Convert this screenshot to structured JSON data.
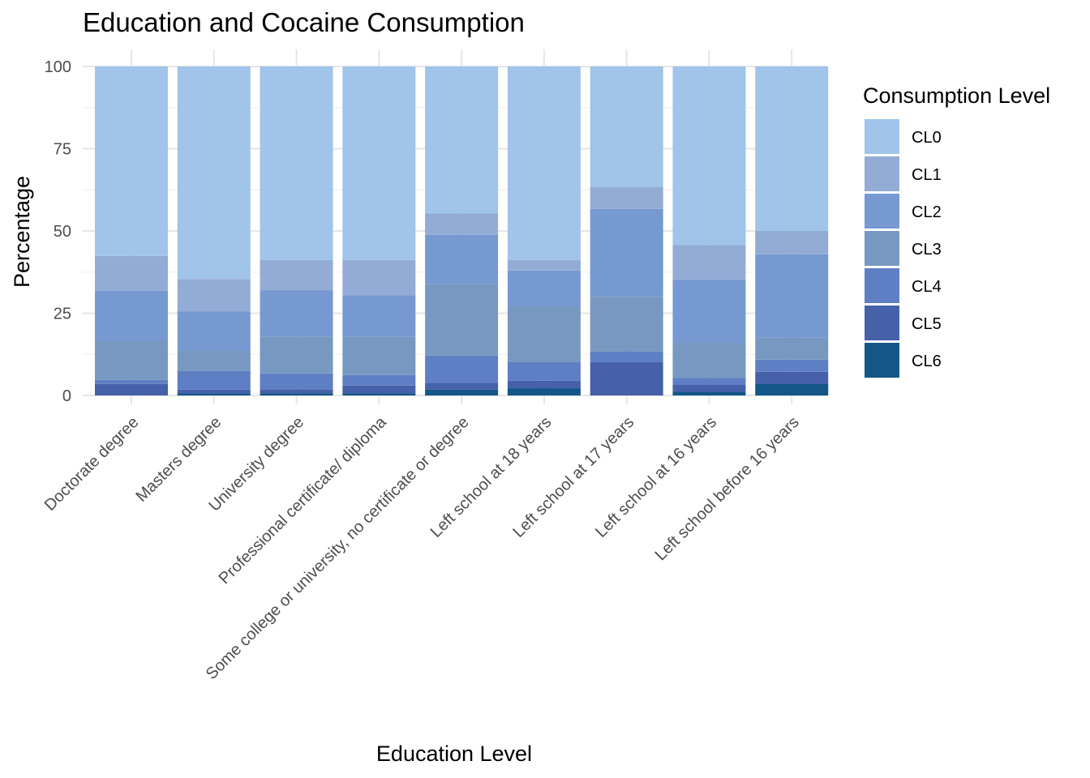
{
  "chart_data": {
    "type": "bar",
    "stacked": true,
    "title": "Education and Cocaine Consumption",
    "xlabel": "Education Level",
    "ylabel": "Percentage",
    "ylim": [
      0,
      100
    ],
    "yticks": [
      "0",
      "25",
      "50",
      "75",
      "100"
    ],
    "grid": true,
    "legend_title": "Consumption Level",
    "legend_position": "right",
    "categories": [
      "Doctorate degree",
      "Masters degree",
      "University degree",
      "Professional certificate/ diploma",
      "Some college or university, no certificate or degree",
      "Left school at 18 years",
      "Left school at 17 years",
      "Left school at 16 years",
      "Left school before 16 years"
    ],
    "series": [
      {
        "name": "CL0",
        "color": "#A0C4EA",
        "values": [
          57.6,
          64.6,
          58.8,
          58.8,
          44.7,
          58.8,
          36.7,
          54.3,
          50.0
        ]
      },
      {
        "name": "CL1",
        "color": "#93ACD5",
        "values": [
          10.6,
          9.9,
          9.2,
          10.7,
          6.5,
          3.2,
          6.6,
          10.6,
          7.1
        ]
      },
      {
        "name": "CL2",
        "color": "#7699D2",
        "values": [
          15.3,
          11.7,
          14.1,
          12.7,
          14.9,
          10.9,
          26.7,
          19.2,
          25.2
        ]
      },
      {
        "name": "CL3",
        "color": "#7799C1",
        "values": [
          11.8,
          6.4,
          11.2,
          11.6,
          21.8,
          16.9,
          16.6,
          10.6,
          6.8
        ]
      },
      {
        "name": "CL4",
        "color": "#5F7FC4",
        "values": [
          1.2,
          5.6,
          4.8,
          3.2,
          8.3,
          5.7,
          3.3,
          2.1,
          3.7
        ]
      },
      {
        "name": "CL5",
        "color": "#4660AA",
        "values": [
          3.5,
          1.2,
          1.2,
          2.3,
          2.0,
          2.3,
          10.1,
          2.1,
          3.6
        ]
      },
      {
        "name": "CL6",
        "color": "#135687",
        "values": [
          0.0,
          0.6,
          0.7,
          0.7,
          1.8,
          2.2,
          0.0,
          1.1,
          3.6
        ]
      }
    ]
  }
}
